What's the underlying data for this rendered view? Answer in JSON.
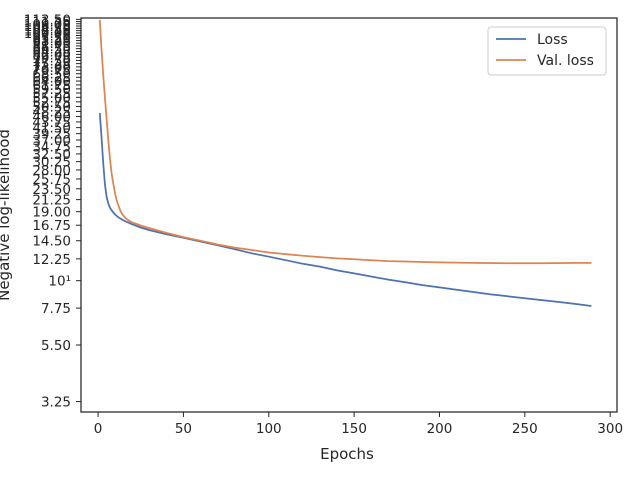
{
  "chart_data": {
    "type": "line",
    "xlabel": "Epochs",
    "ylabel": "Negative log-likelihood",
    "yscale": "log",
    "xlim": [
      -10,
      304
    ],
    "ylim": [
      2.95,
      115
    ],
    "x_ticks": [
      0,
      50,
      100,
      150,
      200,
      250,
      300
    ],
    "y_ticks": [
      {
        "value": 3.25,
        "label": "3.25"
      },
      {
        "value": 5.5,
        "label": "5.50"
      },
      {
        "value": 7.75,
        "label": "7.75"
      },
      {
        "value": 10,
        "label": "10¹"
      },
      {
        "value": 12.25,
        "label": "12.25"
      },
      {
        "value": 14.5,
        "label": "14.50"
      },
      {
        "value": 16.75,
        "label": "16.75"
      },
      {
        "value": 19.0,
        "label": "19.00"
      },
      {
        "value": 21.25,
        "label": "21.25"
      },
      {
        "value": 23.5,
        "label": "23.50"
      },
      {
        "value": 25.75,
        "label": "25.75"
      },
      {
        "value": 28.0,
        "label": "28.00"
      },
      {
        "value": 30.25,
        "label": "30.25"
      },
      {
        "value": 32.5,
        "label": "32.50"
      },
      {
        "value": 34.75,
        "label": "34.75"
      },
      {
        "value": 37.0,
        "label": "37.00"
      },
      {
        "value": 39.25,
        "label": "39.25"
      },
      {
        "value": 41.5,
        "label": "41.50"
      },
      {
        "value": 43.75,
        "label": "43.75"
      },
      {
        "value": 46.0,
        "label": "46.00"
      },
      {
        "value": 48.25,
        "label": "48.25"
      },
      {
        "value": 50.5,
        "label": "50.50"
      },
      {
        "value": 52.75,
        "label": "52.75"
      },
      {
        "value": 55.0,
        "label": "55.00"
      },
      {
        "value": 57.25,
        "label": "57.25"
      },
      {
        "value": 59.5,
        "label": "59.50"
      },
      {
        "value": 61.75,
        "label": "61.75"
      },
      {
        "value": 64.0,
        "label": "64.00"
      },
      {
        "value": 66.25,
        "label": "66.25"
      },
      {
        "value": 68.5,
        "label": "68.50"
      },
      {
        "value": 70.75,
        "label": "70.75"
      },
      {
        "value": 73.0,
        "label": "73.00"
      },
      {
        "value": 75.25,
        "label": "75.25"
      },
      {
        "value": 77.5,
        "label": "77.50"
      },
      {
        "value": 79.75,
        "label": "79.75"
      },
      {
        "value": 82.0,
        "label": "82.00"
      },
      {
        "value": 84.25,
        "label": "84.25"
      },
      {
        "value": 86.5,
        "label": "86.50"
      },
      {
        "value": 88.75,
        "label": "88.75"
      },
      {
        "value": 91.0,
        "label": "91.00"
      },
      {
        "value": 93.25,
        "label": "93.25"
      },
      {
        "value": 95.5,
        "label": "95.50"
      },
      {
        "value": 97.75,
        "label": "97.75"
      },
      {
        "value": 100.0,
        "label": "100.00"
      },
      {
        "value": 102.25,
        "label": "102.25"
      },
      {
        "value": 104.5,
        "label": "104.50"
      },
      {
        "value": 106.75,
        "label": "106.75"
      },
      {
        "value": 109.0,
        "label": "109.00"
      },
      {
        "value": 111.25,
        "label": "111.25"
      },
      {
        "value": 113.5,
        "label": "113.50"
      }
    ],
    "grid": false,
    "legend_position": "top-right",
    "series": [
      {
        "name": "Loss",
        "color": "#4c72b0",
        "x": [
          1,
          2,
          3,
          4,
          5,
          6,
          7,
          8,
          10,
          12,
          15,
          20,
          25,
          30,
          40,
          50,
          60,
          70,
          80,
          90,
          100,
          110,
          120,
          130,
          140,
          150,
          160,
          170,
          180,
          190,
          200,
          210,
          220,
          230,
          240,
          250,
          260,
          270,
          280,
          289
        ],
        "y": [
          47.5,
          38.0,
          30.0,
          24.5,
          21.8,
          20.5,
          19.7,
          19.2,
          18.5,
          18.0,
          17.5,
          16.9,
          16.4,
          16.0,
          15.4,
          14.9,
          14.4,
          13.9,
          13.4,
          12.9,
          12.5,
          12.1,
          11.7,
          11.4,
          11.0,
          10.7,
          10.4,
          10.1,
          9.85,
          9.6,
          9.4,
          9.2,
          9.0,
          8.8,
          8.65,
          8.5,
          8.35,
          8.2,
          8.05,
          7.9
        ]
      },
      {
        "name": "Val. loss",
        "color": "#dd8452",
        "x": [
          1,
          2,
          3,
          4,
          5,
          6,
          7,
          8,
          9,
          10,
          11,
          12,
          13,
          14,
          16,
          18,
          20,
          25,
          30,
          40,
          50,
          60,
          70,
          80,
          90,
          100,
          110,
          120,
          130,
          140,
          150,
          160,
          170,
          180,
          190,
          200,
          220,
          240,
          260,
          280,
          289
        ],
        "y": [
          113.0,
          86.0,
          68.0,
          55.0,
          45.0,
          37.0,
          31.0,
          27.0,
          24.5,
          22.5,
          21.0,
          20.0,
          19.2,
          18.6,
          17.9,
          17.5,
          17.2,
          16.7,
          16.3,
          15.6,
          15.0,
          14.5,
          14.0,
          13.6,
          13.3,
          13.0,
          12.8,
          12.6,
          12.45,
          12.3,
          12.2,
          12.1,
          12.0,
          11.95,
          11.9,
          11.85,
          11.8,
          11.75,
          11.75,
          11.8,
          11.8
        ]
      }
    ]
  }
}
